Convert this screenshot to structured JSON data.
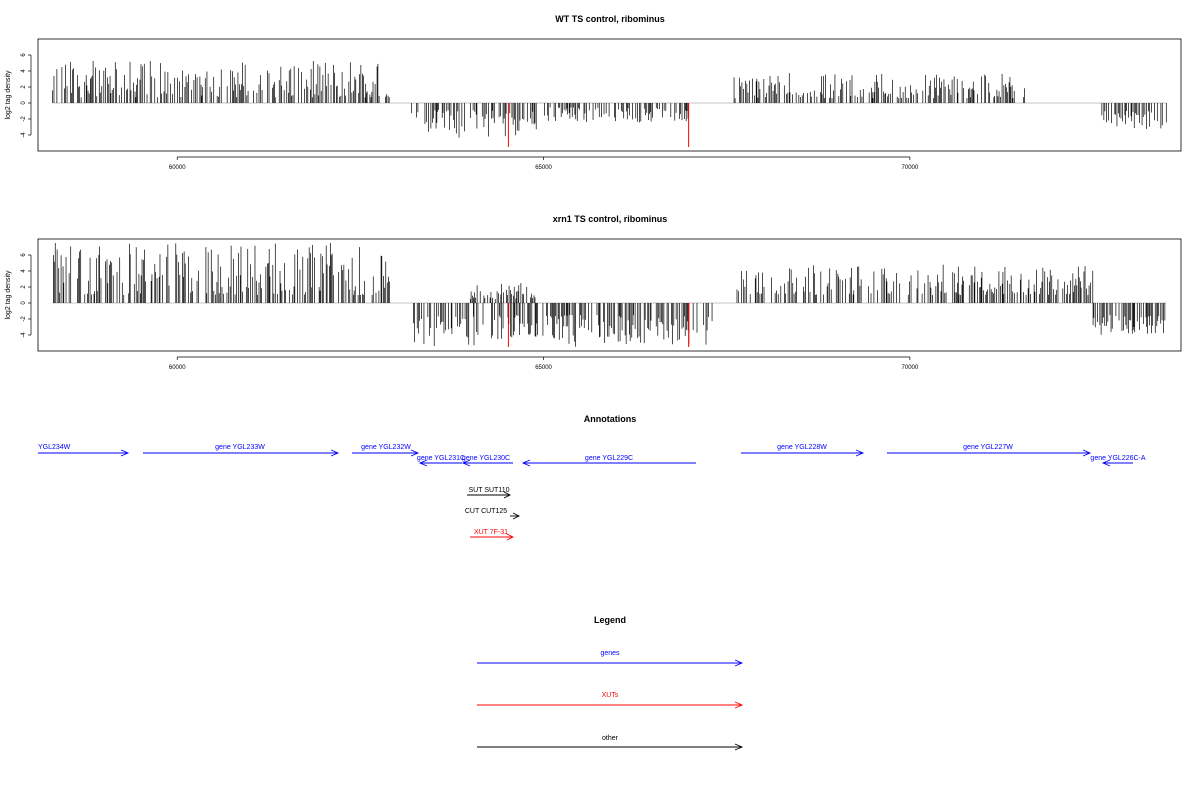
{
  "chart_data": [
    {
      "type": "bar",
      "title": "WT TS control, ribominus",
      "xlabel": "",
      "ylabel": "log2 tag density",
      "xlim": [
        58100,
        73700
      ],
      "ylim": [
        -6,
        8
      ],
      "xticks": [
        60000,
        65000,
        70000
      ],
      "yticks": [
        -4,
        -2,
        0,
        2,
        4,
        6
      ],
      "grid": false,
      "series": [
        {
          "color": "#000000",
          "segments": [
            {
              "x": [
                58300,
                62900
              ],
              "y": [
                0.7,
                5.3
              ]
            },
            {
              "x": [
                63200,
                64900
              ],
              "y": [
                -4.5,
                -0.8
              ]
            },
            {
              "x": [
                65000,
                67000
              ],
              "y": [
                -2.5,
                -0.5
              ]
            },
            {
              "x": [
                67600,
                71600
              ],
              "y": [
                0.6,
                3.8
              ]
            },
            {
              "x": [
                72600,
                73500
              ],
              "y": [
                -3.5,
                -1.0
              ]
            }
          ]
        },
        {
          "color": "#ff0000",
          "points": [
            {
              "x": 64520,
              "y": -5.5
            },
            {
              "x": 66980,
              "y": -5.5
            }
          ]
        }
      ]
    },
    {
      "type": "bar",
      "title": "xrn1 TS control, ribominus",
      "xlabel": "",
      "ylabel": "log2 tag density",
      "xlim": [
        58100,
        73700
      ],
      "ylim": [
        -6,
        8
      ],
      "xticks": [
        60000,
        65000,
        70000
      ],
      "yticks": [
        -4,
        -2,
        0,
        2,
        4,
        6
      ],
      "grid": false,
      "series": [
        {
          "color": "#000000",
          "segments": [
            {
              "x": [
                58300,
                62900
              ],
              "y": [
                1.0,
                7.5
              ]
            },
            {
              "x": [
                63200,
                64600
              ],
              "y": [
                -5.5,
                -1.5
              ]
            },
            {
              "x": [
                64000,
                64900
              ],
              "y": [
                0.5,
                2.5
              ]
            },
            {
              "x": [
                64600,
                67300
              ],
              "y": [
                -5.5,
                -1.5
              ]
            },
            {
              "x": [
                67600,
                72500
              ],
              "y": [
                1.0,
                4.8
              ]
            },
            {
              "x": [
                72500,
                73500
              ],
              "y": [
                -4.0,
                -1.5
              ]
            }
          ]
        },
        {
          "color": "#ff0000",
          "points": [
            {
              "x": 64520,
              "y": -5.5
            },
            {
              "x": 66980,
              "y": -5.5
            }
          ]
        }
      ]
    }
  ],
  "annotations": {
    "title": "Annotations",
    "genes": [
      {
        "label": "YGL234W",
        "dir": "+",
        "row": 0,
        "color": "#0000ff"
      },
      {
        "label": "gene YGL233W",
        "dir": "+",
        "row": 0,
        "color": "#0000ff"
      },
      {
        "label": "gene YGL232W",
        "dir": "+",
        "row": 0,
        "color": "#0000ff"
      },
      {
        "label": "gene YGL231C",
        "dir": "-",
        "row": 1,
        "color": "#0000ff"
      },
      {
        "label": "gene YGL230C",
        "dir": "-",
        "row": 1,
        "color": "#0000ff"
      },
      {
        "label": "gene YGL229C",
        "dir": "-",
        "row": 1,
        "color": "#0000ff"
      },
      {
        "label": "gene YGL228W",
        "dir": "+",
        "row": 0,
        "color": "#0000ff"
      },
      {
        "label": "gene YGL227W",
        "dir": "+",
        "row": 0,
        "color": "#0000ff"
      },
      {
        "label": "gene YGL226C-A",
        "dir": "-",
        "row": 1,
        "color": "#0000ff"
      }
    ],
    "other": [
      {
        "label": "SUT SUT110",
        "dir": "+",
        "color": "#000000"
      },
      {
        "label": "CUT CUT125",
        "dir": "+",
        "color": "#000000"
      },
      {
        "label": "XUT 7F-31",
        "dir": "+",
        "color": "#ff0000"
      }
    ]
  },
  "legend": {
    "title": "Legend",
    "items": [
      {
        "label": "genes",
        "color": "#0000ff"
      },
      {
        "label": "XUTs",
        "color": "#ff0000"
      },
      {
        "label": "other",
        "color": "#000000"
      }
    ]
  }
}
